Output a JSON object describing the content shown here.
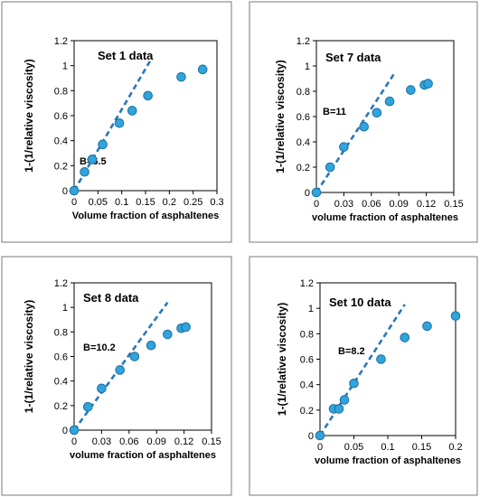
{
  "chart_data": [
    {
      "type": "scatter",
      "title": "Set 1 data",
      "xlabel": "Volume fraction of asphaltenes",
      "ylabel": "1-(1/relative viscosity)",
      "xlim": [
        0,
        0.3
      ],
      "ylim": [
        0,
        1.2
      ],
      "xticks": [
        "0",
        "0.05",
        "0.1",
        "0.15",
        "0.2",
        "0.25",
        "0.3"
      ],
      "yticks": [
        "0",
        "0.2",
        "0.4",
        "0.6",
        "0.8",
        "1",
        "1.2"
      ],
      "annotation": "B=6.5",
      "fit_line": {
        "style": "dashed",
        "x": [
          0,
          0.16
        ],
        "y": [
          0,
          1.04
        ]
      },
      "points": [
        {
          "x": 0,
          "y": 0
        },
        {
          "x": 0.022,
          "y": 0.15
        },
        {
          "x": 0.038,
          "y": 0.25
        },
        {
          "x": 0.06,
          "y": 0.37
        },
        {
          "x": 0.095,
          "y": 0.54
        },
        {
          "x": 0.122,
          "y": 0.64
        },
        {
          "x": 0.155,
          "y": 0.76
        },
        {
          "x": 0.225,
          "y": 0.91
        },
        {
          "x": 0.27,
          "y": 0.97
        }
      ]
    },
    {
      "type": "scatter",
      "title": "Set 7 data",
      "xlabel": "volume fraction of asphaltenes",
      "ylabel": "1-(1/relative viscosity)",
      "xlim": [
        0,
        0.15
      ],
      "ylim": [
        0,
        1.2
      ],
      "xticks": [
        "0",
        "0.03",
        "0.06",
        "0.09",
        "0.12",
        "0.15"
      ],
      "yticks": [
        "0",
        "0.2",
        "0.4",
        "0.6",
        "0.8",
        "1",
        "1.2"
      ],
      "annotation": "B=11",
      "fit_line": {
        "style": "dashed",
        "x": [
          0,
          0.085
        ],
        "y": [
          0,
          0.94
        ]
      },
      "points": [
        {
          "x": 0,
          "y": 0
        },
        {
          "x": 0.015,
          "y": 0.2
        },
        {
          "x": 0.03,
          "y": 0.36
        },
        {
          "x": 0.052,
          "y": 0.52
        },
        {
          "x": 0.066,
          "y": 0.63
        },
        {
          "x": 0.08,
          "y": 0.72
        },
        {
          "x": 0.103,
          "y": 0.81
        },
        {
          "x": 0.118,
          "y": 0.85
        },
        {
          "x": 0.122,
          "y": 0.86
        }
      ]
    },
    {
      "type": "scatter",
      "title": "Set 8 data",
      "xlabel": "volume fraction of asphaltenes",
      "ylabel": "1-(1/relative viscosity)",
      "xlim": [
        0,
        0.15
      ],
      "ylim": [
        0,
        1.2
      ],
      "xticks": [
        "0",
        "0.03",
        "0.06",
        "0.09",
        "0.12",
        "0.15"
      ],
      "yticks": [
        "0",
        "0.2",
        "0.4",
        "0.6",
        "0.8",
        "1",
        "1.2"
      ],
      "annotation": "B=10.2",
      "fit_line": {
        "style": "dashed",
        "x": [
          0,
          0.102
        ],
        "y": [
          0,
          1.04
        ]
      },
      "points": [
        {
          "x": 0,
          "y": 0
        },
        {
          "x": 0.015,
          "y": 0.19
        },
        {
          "x": 0.03,
          "y": 0.34
        },
        {
          "x": 0.05,
          "y": 0.49
        },
        {
          "x": 0.066,
          "y": 0.6
        },
        {
          "x": 0.084,
          "y": 0.69
        },
        {
          "x": 0.102,
          "y": 0.78
        },
        {
          "x": 0.117,
          "y": 0.83
        },
        {
          "x": 0.122,
          "y": 0.84
        }
      ]
    },
    {
      "type": "scatter",
      "title": "Set 10 data",
      "xlabel": "volume fraction of asphaltenes",
      "ylabel": "1-(1/relative viscosity)",
      "xlim": [
        0,
        0.2
      ],
      "ylim": [
        0,
        1.2
      ],
      "xticks": [
        "0",
        "0.05",
        "0.1",
        "0.15",
        "0.2"
      ],
      "yticks": [
        "0",
        "0.2",
        "0.4",
        "0.6",
        "0.8",
        "1",
        "1.2"
      ],
      "annotation": "B=8.2",
      "fit_line": {
        "style": "dashed",
        "x": [
          0,
          0.125
        ],
        "y": [
          0,
          1.03
        ]
      },
      "points": [
        {
          "x": 0,
          "y": 0
        },
        {
          "x": 0.02,
          "y": 0.21
        },
        {
          "x": 0.028,
          "y": 0.21
        },
        {
          "x": 0.036,
          "y": 0.28
        },
        {
          "x": 0.05,
          "y": 0.41
        },
        {
          "x": 0.09,
          "y": 0.6
        },
        {
          "x": 0.125,
          "y": 0.77
        },
        {
          "x": 0.158,
          "y": 0.86
        },
        {
          "x": 0.2,
          "y": 0.94
        }
      ]
    }
  ]
}
